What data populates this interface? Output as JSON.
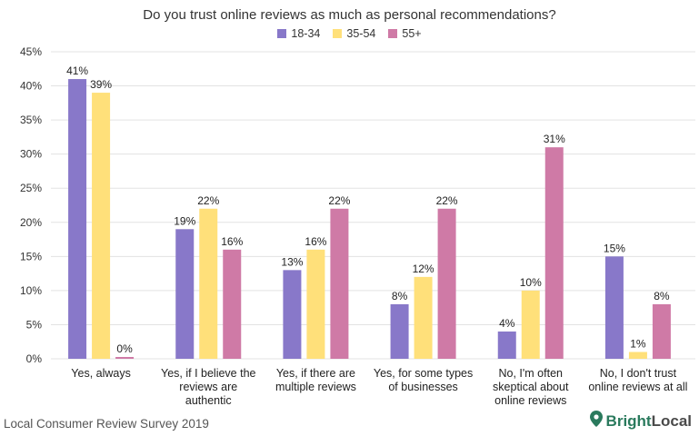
{
  "chart_data": {
    "type": "bar",
    "title": "Do you trust online reviews as much as personal recommendations?",
    "categories": [
      [
        "Yes, always"
      ],
      [
        "Yes, if I believe the",
        "reviews are",
        "authentic"
      ],
      [
        "Yes, if there are",
        "multiple reviews"
      ],
      [
        "Yes, for some types",
        "of businesses"
      ],
      [
        "No, I'm often",
        "skeptical about",
        "online reviews"
      ],
      [
        "No, I don't trust",
        "online reviews at all"
      ]
    ],
    "series": [
      {
        "name": "18-34",
        "color": "#8878c9",
        "values": [
          41,
          19,
          13,
          8,
          4,
          15
        ]
      },
      {
        "name": "35-54",
        "color": "#ffe07a",
        "values": [
          39,
          22,
          16,
          12,
          10,
          1
        ]
      },
      {
        "name": "55+",
        "color": "#cf7aa6",
        "values": [
          0,
          16,
          22,
          22,
          31,
          8
        ]
      }
    ],
    "value_suffix": "%",
    "ylim": [
      0,
      45
    ],
    "yticks": [
      "0%",
      "5%",
      "10%",
      "15%",
      "20%",
      "25%",
      "30%",
      "35%",
      "40%",
      "45%"
    ],
    "grid": true,
    "legend": "top-center"
  },
  "footer": {
    "source": "Local Consumer Review Survey 2019",
    "brand_part1": "Bright",
    "brand_part2": "Local"
  },
  "colors": {
    "grid": "#e3e3e3",
    "axis_text": "#333333",
    "brand_green": "#2a7a5d"
  },
  "icons": {
    "brand": "location-pin-icon"
  }
}
